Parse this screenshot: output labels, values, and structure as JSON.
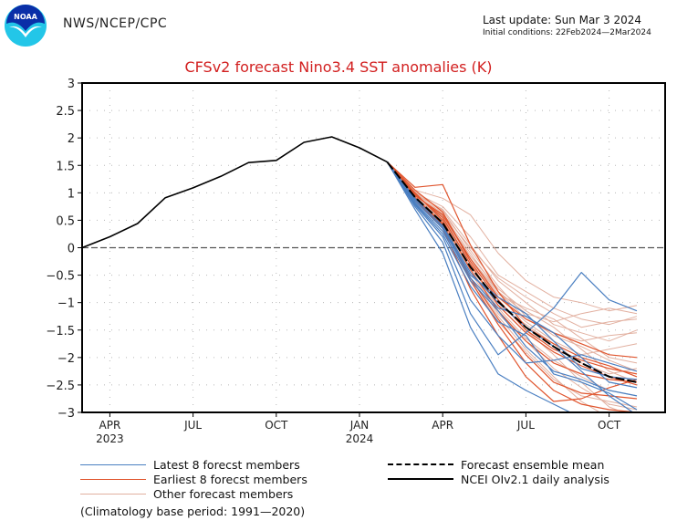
{
  "header": {
    "org": "NWS/NCEP/CPC",
    "logo_text": "NOAA",
    "last_update": "Last update: Sun Mar 3 2024",
    "initial_conditions": "Initial conditions: 22Feb2024—2Mar2024"
  },
  "chart_data": {
    "type": "line",
    "title": "CFSv2 forecast Nino3.4 SST anomalies (K)",
    "xlabel": "",
    "ylabel": "",
    "ylim": [
      -3,
      3
    ],
    "yticks": [
      3,
      2.5,
      2,
      1.5,
      1,
      0.5,
      0,
      -0.5,
      -1,
      -1.5,
      -2,
      -2.5,
      -3
    ],
    "ytick_labels": [
      "3",
      "2.5",
      "2",
      "1.5",
      "1",
      "0.5",
      "0",
      "−0.5",
      "−1",
      "−1.5",
      "−2",
      "−2.5",
      "−3"
    ],
    "x_months": [
      "Mar 2023",
      "Apr 2023",
      "May 2023",
      "Jun 2023",
      "Jul 2023",
      "Aug 2023",
      "Sep 2023",
      "Oct 2023",
      "Nov 2023",
      "Dec 2023",
      "Jan 2024",
      "Feb 2024",
      "Mar 2024",
      "Apr 2024",
      "May 2024",
      "Jun 2024",
      "Jul 2024",
      "Aug 2024",
      "Sep 2024",
      "Oct 2024",
      "Nov 2024"
    ],
    "xlim_months": [
      0,
      21
    ],
    "xticks": [
      {
        "month_index": 1,
        "label": "APR",
        "year": "2023"
      },
      {
        "month_index": 4,
        "label": "JUL",
        "year": ""
      },
      {
        "month_index": 7,
        "label": "OCT",
        "year": ""
      },
      {
        "month_index": 10,
        "label": "JAN",
        "year": "2024"
      },
      {
        "month_index": 13,
        "label": "APR",
        "year": ""
      },
      {
        "month_index": 16,
        "label": "JUL",
        "year": ""
      },
      {
        "month_index": 19,
        "label": "OCT",
        "year": ""
      }
    ],
    "grid": true,
    "zero_line": "dashed",
    "observed": {
      "name": "NCEI OIv2.1 daily analysis",
      "color": "#000000",
      "start_month_index": 0,
      "values": [
        0.0,
        0.2,
        0.44,
        0.91,
        1.09,
        1.3,
        1.55,
        1.59,
        1.92,
        2.02,
        1.82,
        1.56
      ]
    },
    "forecast_start_month_index": 11,
    "ensemble_mean": {
      "name": "Forecast ensemble mean",
      "color": "#000000",
      "values": [
        1.56,
        0.92,
        0.45,
        -0.35,
        -0.98,
        -1.45,
        -1.8,
        -2.1,
        -2.35,
        -2.45
      ]
    },
    "latest_members": {
      "name": "Latest 8 forecst members",
      "color": "#4a7fc1",
      "series": [
        [
          1.56,
          0.75,
          0.1,
          -1.2,
          -1.95,
          -1.55,
          -1.1,
          -0.45,
          -0.95,
          -1.15
        ],
        [
          1.56,
          0.7,
          -0.1,
          -1.45,
          -2.3,
          -2.6,
          -2.85,
          -3.1,
          -3.2,
          -3.3
        ],
        [
          1.56,
          0.8,
          0.25,
          -0.7,
          -1.35,
          -1.6,
          -2.3,
          -2.45,
          -2.65,
          -2.95
        ],
        [
          1.56,
          0.85,
          0.35,
          -0.55,
          -1.1,
          -1.25,
          -1.55,
          -2.0,
          -2.45,
          -2.55
        ],
        [
          1.56,
          0.78,
          0.2,
          -0.95,
          -1.6,
          -2.1,
          -2.05,
          -1.95,
          -2.1,
          -2.25
        ],
        [
          1.56,
          0.88,
          0.4,
          -0.45,
          -1.0,
          -1.45,
          -1.8,
          -2.25,
          -2.7,
          -3.05
        ],
        [
          1.56,
          0.82,
          0.3,
          -0.6,
          -1.15,
          -1.8,
          -2.25,
          -2.4,
          -2.6,
          -2.7
        ],
        [
          1.56,
          0.9,
          0.38,
          -0.5,
          -0.9,
          -1.2,
          -1.7,
          -2.2,
          -2.35,
          -2.4
        ]
      ]
    },
    "earliest_members": {
      "name": "Earliest 8 forecst members",
      "color": "#e0552e",
      "series": [
        [
          1.56,
          1.1,
          1.15,
          0.05,
          -0.8,
          -1.45,
          -1.75,
          -2.0,
          -2.15,
          -2.35
        ],
        [
          1.56,
          0.95,
          0.6,
          -0.2,
          -0.9,
          -1.3,
          -1.55,
          -1.75,
          -1.95,
          -2.0
        ],
        [
          1.56,
          1.0,
          0.5,
          -0.4,
          -1.15,
          -1.7,
          -2.1,
          -2.3,
          -2.4,
          -2.45
        ],
        [
          1.56,
          0.9,
          0.45,
          -0.6,
          -1.4,
          -2.1,
          -2.6,
          -2.85,
          -2.95,
          -3.0
        ],
        [
          1.56,
          1.05,
          0.65,
          -0.25,
          -0.95,
          -1.5,
          -1.85,
          -2.05,
          -2.2,
          -2.3
        ],
        [
          1.56,
          0.88,
          0.35,
          -0.75,
          -1.6,
          -2.35,
          -2.8,
          -2.75,
          -2.55,
          -2.4
        ],
        [
          1.56,
          0.98,
          0.55,
          -0.3,
          -1.05,
          -1.55,
          -1.9,
          -2.15,
          -2.35,
          -2.5
        ],
        [
          1.56,
          0.92,
          0.42,
          -0.55,
          -1.3,
          -1.95,
          -2.45,
          -2.65,
          -2.7,
          -2.75
        ]
      ]
    },
    "other_members": {
      "name": "Other forecast members",
      "color": "#e2b0a0",
      "series": [
        [
          1.56,
          1.05,
          0.9,
          0.6,
          -0.1,
          -0.6,
          -0.9,
          -1.0,
          -1.15,
          -1.05
        ],
        [
          1.56,
          1.0,
          0.75,
          0.2,
          -0.5,
          -0.8,
          -1.1,
          -1.3,
          -1.4,
          -1.25
        ],
        [
          1.56,
          0.98,
          0.7,
          0.05,
          -0.6,
          -1.0,
          -1.4,
          -1.55,
          -1.7,
          -1.5
        ],
        [
          1.56,
          0.95,
          0.6,
          -0.1,
          -0.8,
          -1.2,
          -1.35,
          -1.2,
          -1.1,
          -1.2
        ],
        [
          1.56,
          0.92,
          0.55,
          -0.2,
          -0.85,
          -1.1,
          -1.3,
          -1.65,
          -2.0,
          -2.1
        ],
        [
          1.56,
          0.9,
          0.5,
          -0.35,
          -1.05,
          -1.4,
          -1.75,
          -2.1,
          -2.3,
          -2.2
        ],
        [
          1.56,
          0.88,
          0.45,
          -0.45,
          -1.2,
          -1.7,
          -2.2,
          -2.55,
          -2.85,
          -2.95
        ],
        [
          1.56,
          0.94,
          0.52,
          -0.25,
          -0.95,
          -1.5,
          -1.95,
          -2.45,
          -2.9,
          -3.1
        ],
        [
          1.56,
          0.86,
          0.4,
          -0.6,
          -1.35,
          -1.9,
          -2.4,
          -2.7,
          -2.8,
          -2.9
        ],
        [
          1.56,
          1.02,
          0.68,
          -0.05,
          -0.7,
          -1.25,
          -1.6,
          -1.8,
          -2.05,
          -2.25
        ],
        [
          1.56,
          0.96,
          0.58,
          -0.15,
          -0.75,
          -1.15,
          -1.45,
          -1.85,
          -2.25,
          -2.45
        ],
        [
          1.56,
          0.9,
          0.48,
          -0.4,
          -1.1,
          -1.65,
          -2.05,
          -2.35,
          -2.6,
          -2.7
        ],
        [
          1.56,
          1.0,
          0.62,
          0.0,
          -0.55,
          -0.9,
          -1.2,
          -1.45,
          -1.35,
          -1.3
        ],
        [
          1.56,
          0.84,
          0.38,
          -0.55,
          -1.25,
          -1.85,
          -2.35,
          -2.8,
          -3.1,
          -3.2
        ],
        [
          1.56,
          0.93,
          0.5,
          -0.3,
          -0.9,
          -1.35,
          -1.7,
          -1.95,
          -1.85,
          -1.75
        ],
        [
          1.56,
          0.97,
          0.56,
          -0.2,
          -0.8,
          -1.3,
          -1.55,
          -1.7,
          -1.6,
          -1.55
        ]
      ]
    },
    "legend": {
      "placement": "bottom",
      "items": [
        {
          "label": "Latest 8 forecst members",
          "style": "solid",
          "color": "#4a7fc1"
        },
        {
          "label": "Earliest 8 forecst members",
          "style": "solid",
          "color": "#e0552e"
        },
        {
          "label": "Other forecast members",
          "style": "solid",
          "color": "#e2b0a0"
        },
        {
          "label": "Forecast ensemble mean",
          "style": "dashed",
          "color": "#000000"
        },
        {
          "label": "NCEI OIv2.1 daily analysis",
          "style": "solid",
          "color": "#000000"
        }
      ]
    },
    "note": "(Climatology base period: 1991—2020)"
  }
}
